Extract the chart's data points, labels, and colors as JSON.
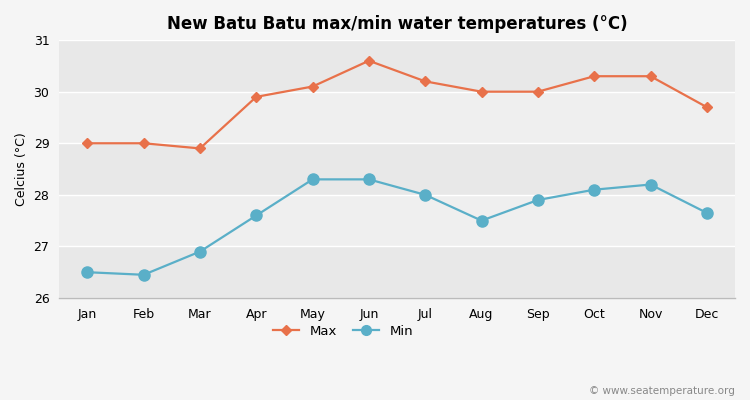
{
  "title": "New Batu Batu max/min water temperatures (°C)",
  "ylabel": "Celcius (°C)",
  "months": [
    "Jan",
    "Feb",
    "Mar",
    "Apr",
    "May",
    "Jun",
    "Jul",
    "Aug",
    "Sep",
    "Oct",
    "Nov",
    "Dec"
  ],
  "max_temps": [
    29.0,
    29.0,
    28.9,
    29.9,
    30.1,
    30.6,
    30.2,
    30.0,
    30.0,
    30.3,
    30.3,
    29.7
  ],
  "min_temps": [
    26.5,
    26.45,
    26.9,
    27.6,
    28.3,
    28.3,
    28.0,
    27.5,
    27.9,
    28.1,
    28.2,
    27.65
  ],
  "ylim": [
    26.0,
    31.0
  ],
  "yticks": [
    26,
    27,
    28,
    29,
    30,
    31
  ],
  "max_color": "#e8714a",
  "min_color": "#5aafc8",
  "fig_bg_color": "#f5f5f5",
  "band_colors": [
    "#e8e8e8",
    "#efefef"
  ],
  "grid_line_color": "#ffffff",
  "max_marker": "D",
  "min_marker": "o",
  "max_markersize": 5,
  "min_markersize": 8,
  "title_fontsize": 12,
  "axis_fontsize": 9,
  "watermark": "© www.seatemperature.org"
}
